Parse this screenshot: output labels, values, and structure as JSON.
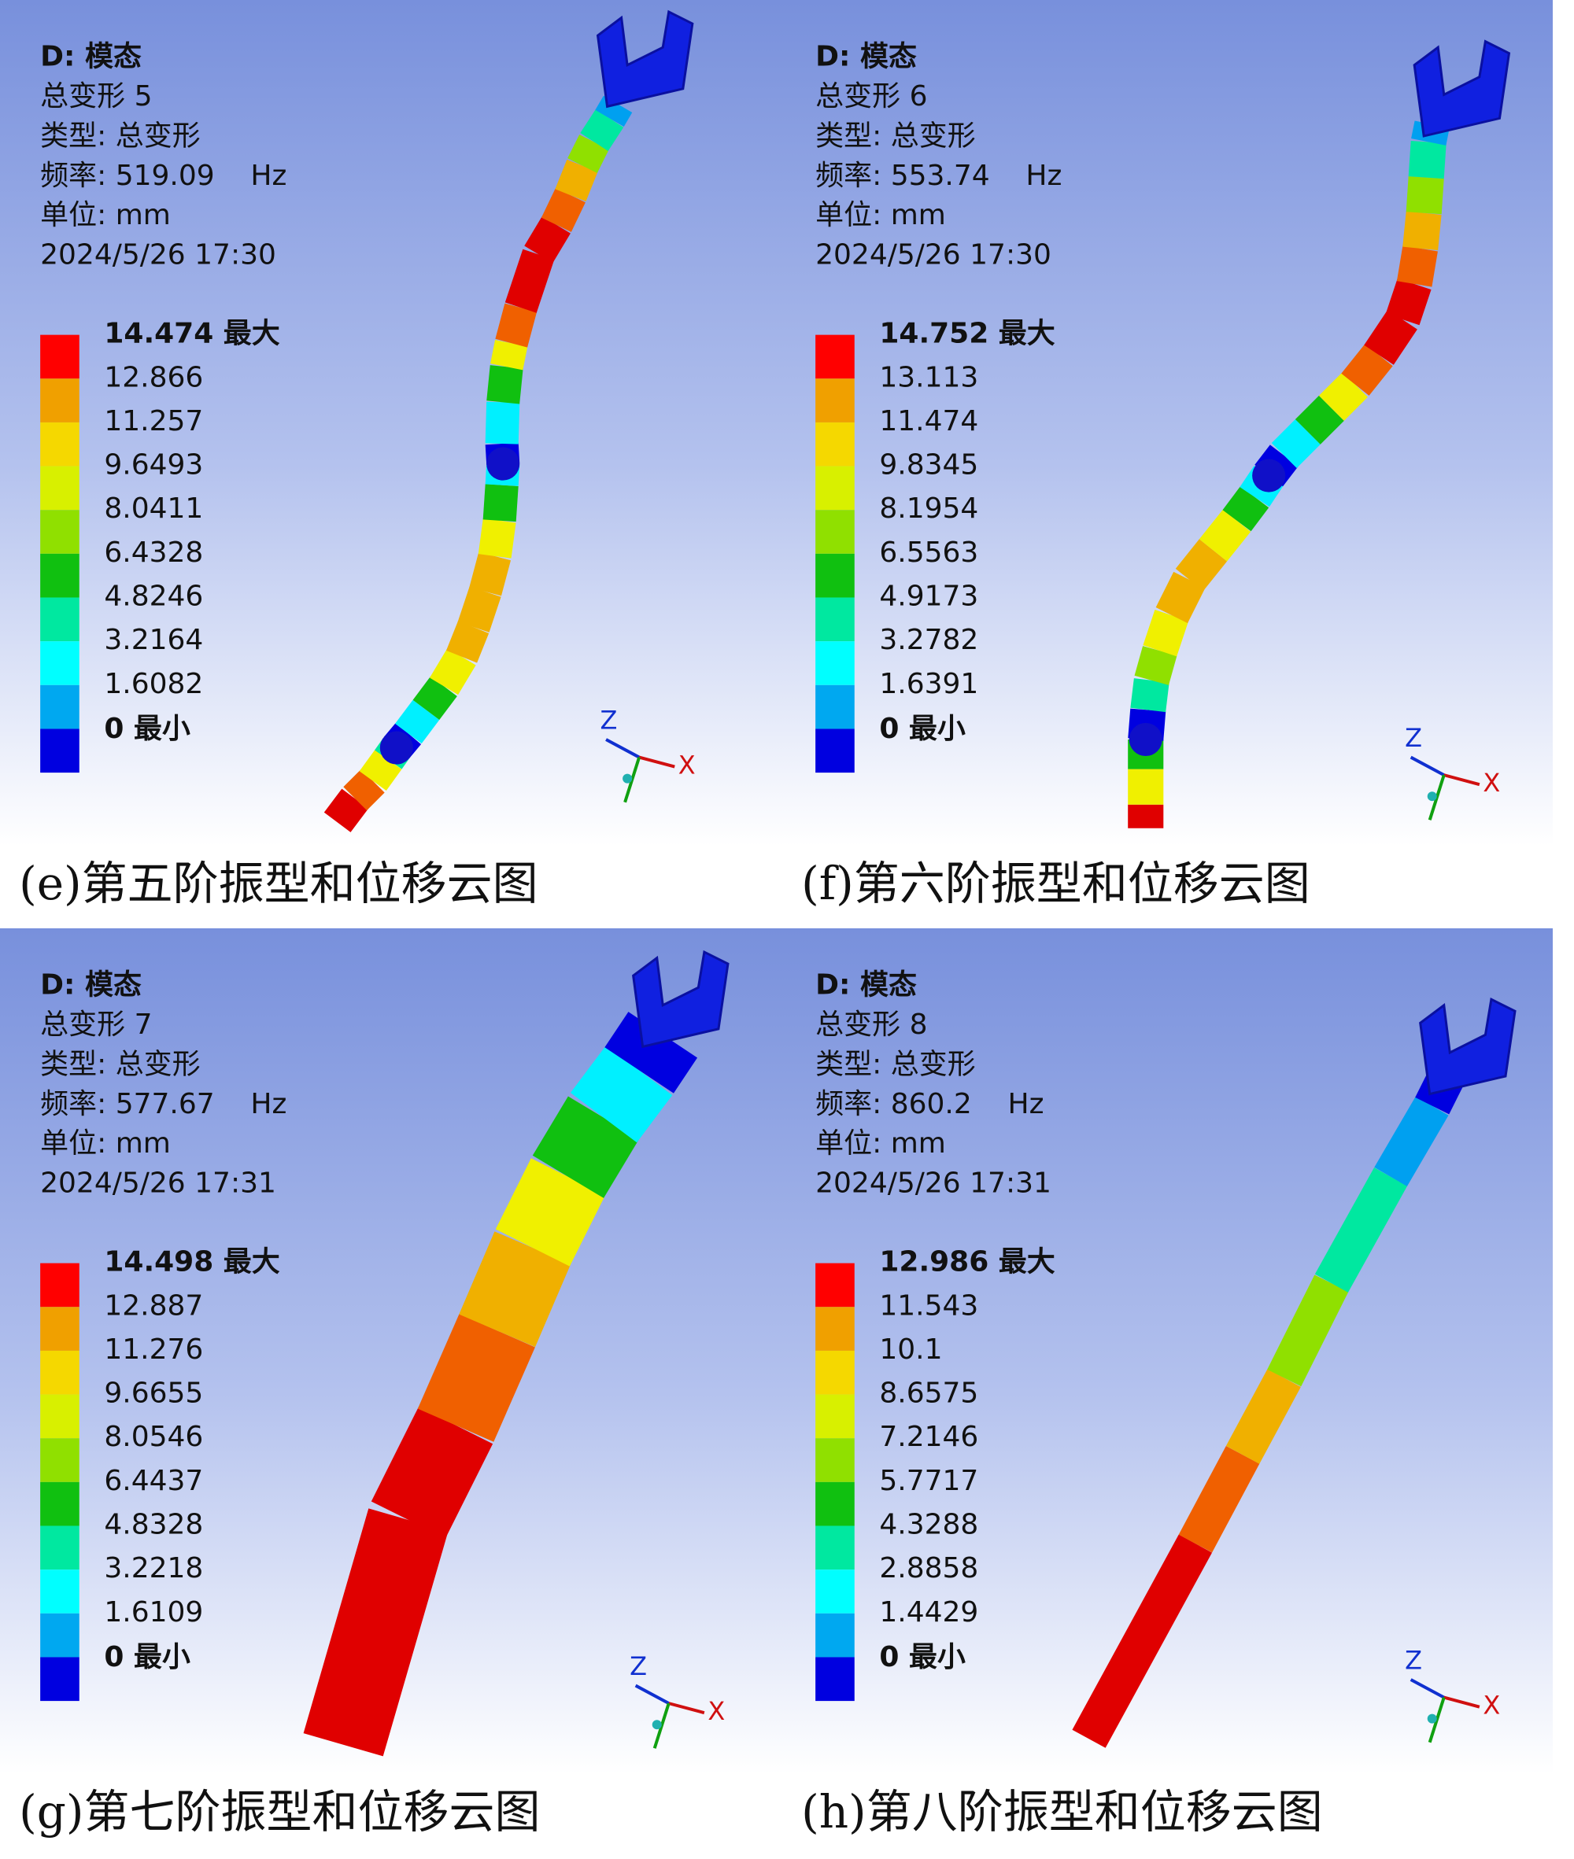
{
  "panels": [
    {
      "system": "D: 模态",
      "result": "总变形 5",
      "type": "类型: 总变形",
      "frequency": "频率: 519.09    Hz",
      "unit": "单位: mm",
      "timestamp": "2024/5/26 17:30",
      "legend": [
        "14.474 最大",
        "12.866",
        "11.257",
        "9.6493",
        "8.0411",
        "6.4328",
        "4.8246",
        "3.2164",
        "1.6082",
        "0 最小"
      ],
      "triad": {
        "z": "Z",
        "x": "X"
      },
      "caption": "(e)第五阶振型和位移云图"
    },
    {
      "system": "D: 模态",
      "result": "总变形 6",
      "type": "类型: 总变形",
      "frequency": "频率: 553.74    Hz",
      "unit": "单位: mm",
      "timestamp": "2024/5/26 17:30",
      "legend": [
        "14.752 最大",
        "13.113",
        "11.474",
        "9.8345",
        "8.1954",
        "6.5563",
        "4.9173",
        "3.2782",
        "1.6391",
        "0 最小"
      ],
      "triad": {
        "z": "Z",
        "x": "X"
      },
      "caption": "(f)第六阶振型和位移云图"
    },
    {
      "system": "D: 模态",
      "result": "总变形 7",
      "type": "类型: 总变形",
      "frequency": "频率: 577.67    Hz",
      "unit": "单位: mm",
      "timestamp": "2024/5/26 17:31",
      "legend": [
        "14.498 最大",
        "12.887",
        "11.276",
        "9.6655",
        "8.0546",
        "6.4437",
        "4.8328",
        "3.2218",
        "1.6109",
        "0 最小"
      ],
      "triad": {
        "z": "Z",
        "x": "X"
      },
      "caption": "(g)第七阶振型和位移云图"
    },
    {
      "system": "D: 模态",
      "result": "总变形 8",
      "type": "类型: 总变形",
      "frequency": "频率: 860.2    Hz",
      "unit": "单位: mm",
      "timestamp": "2024/5/26 17:31",
      "legend": [
        "12.986 最大",
        "11.543",
        "10.1",
        "8.6575",
        "7.2146",
        "5.7717",
        "4.3288",
        "2.8858",
        "1.4429",
        "0 最小"
      ],
      "triad": {
        "z": "Z",
        "x": "X"
      },
      "caption": "(h)第八阶振型和位移云图"
    }
  ]
}
